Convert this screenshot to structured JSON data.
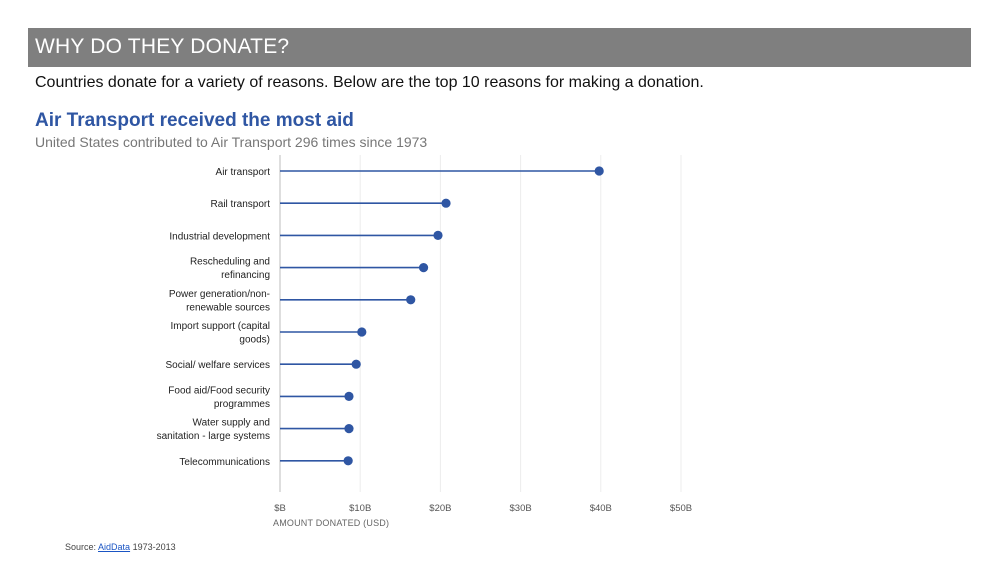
{
  "header": {
    "title": "WHY DO THEY DONATE?"
  },
  "intro": "Countries donate for a variety of reasons. Below are the top 10 reasons for making a donation.",
  "chart_data": {
    "type": "lollipop",
    "title": "Air Transport received the most aid",
    "subtitle": "United States contributed to Air Transport 296 times since 1973",
    "xlabel": "AMOUNT DONATED (USD)",
    "xlim": [
      0,
      50
    ],
    "xticks": [
      "$B",
      "$10B",
      "$20B",
      "$30B",
      "$40B",
      "$50B"
    ],
    "grid": true,
    "color": "#2f56a3",
    "categories": [
      [
        "Air transport"
      ],
      [
        "Rail transport"
      ],
      [
        "Industrial development"
      ],
      [
        "Rescheduling and",
        "refinancing"
      ],
      [
        "Power generation/non-",
        "renewable sources"
      ],
      [
        "Import support (capital",
        "goods)"
      ],
      [
        "Social/ welfare services"
      ],
      [
        "Food aid/Food security",
        "programmes"
      ],
      [
        "Water supply and",
        "sanitation - large systems"
      ],
      [
        "Telecommunications"
      ]
    ],
    "values": [
      39.8,
      20.7,
      19.7,
      17.9,
      16.3,
      10.2,
      9.5,
      8.6,
      8.6,
      8.5
    ]
  },
  "source": {
    "prefix": "Source: ",
    "link": "AidData",
    "suffix": " 1973-2013"
  }
}
